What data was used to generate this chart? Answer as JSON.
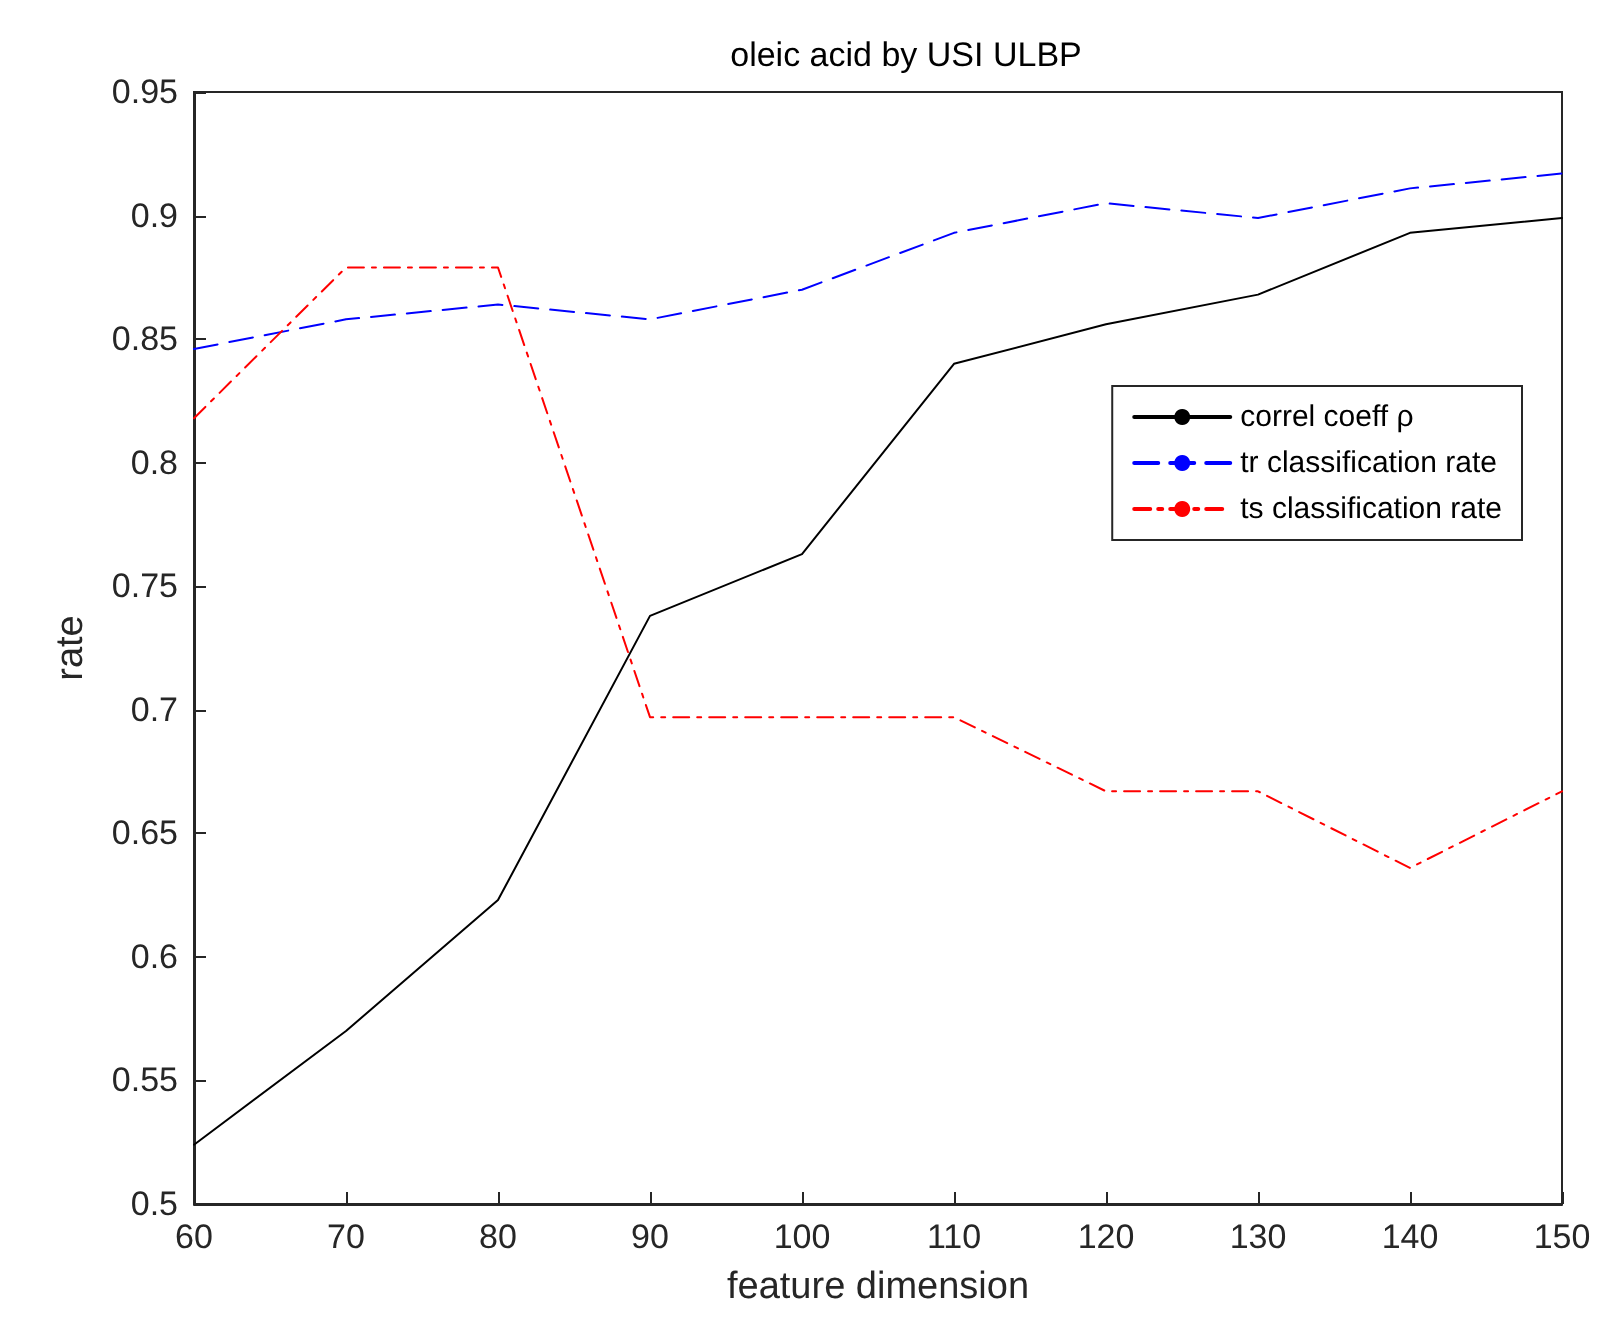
{
  "chart_data": {
    "type": "line",
    "title": "oleic acid by USI ULBP",
    "xlabel": "feature dimension",
    "ylabel": "rate",
    "x": [
      60,
      70,
      80,
      90,
      100,
      110,
      120,
      130,
      140,
      150
    ],
    "series": [
      {
        "name": "correl coeff ρ",
        "color": "#000000",
        "line_style": "solid",
        "values": [
          0.524,
          0.57,
          0.623,
          0.738,
          0.763,
          0.84,
          0.856,
          0.868,
          0.893,
          0.899
        ]
      },
      {
        "name": "tr classification rate",
        "color": "#0000ff",
        "line_style": "dashed",
        "values": [
          0.846,
          0.858,
          0.864,
          0.858,
          0.87,
          0.893,
          0.905,
          0.899,
          0.911,
          0.917
        ]
      },
      {
        "name": "ts classification rate",
        "color": "#ff0000",
        "line_style": "dashdot",
        "values": [
          0.818,
          0.879,
          0.879,
          0.697,
          0.697,
          0.697,
          0.667,
          0.667,
          0.636,
          0.667
        ]
      }
    ],
    "xlim": [
      60,
      150
    ],
    "xticks": [
      60,
      70,
      80,
      90,
      100,
      110,
      120,
      130,
      140,
      150
    ],
    "ylim": [
      0.5,
      0.95
    ],
    "yticks": [
      0.5,
      0.55,
      0.6,
      0.65,
      0.7,
      0.75,
      0.8,
      0.85,
      0.9,
      0.95
    ],
    "grid": false,
    "legend": "right",
    "marker": "none"
  }
}
